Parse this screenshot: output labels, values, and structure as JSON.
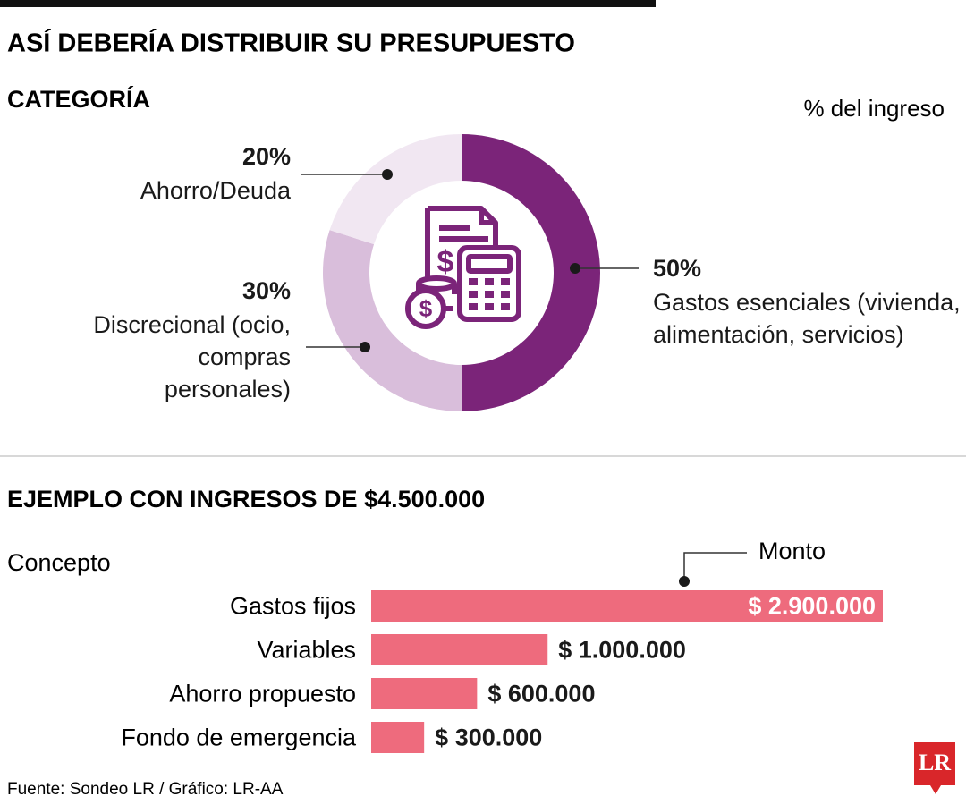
{
  "title": "ASÍ DEBERÍA DISTRIBUIR SU PRESUPUESTO",
  "source": "Fuente: Sondeo LR / Gráfico: LR-AA",
  "logo": "LR",
  "chart_data": [
    {
      "type": "donut",
      "title": "CATEGORÍA",
      "subtitle": "% del ingreso",
      "categories": [
        "Gastos esenciales (vivienda, alimentación, servicios)",
        "Discrecional (ocio, compras personales)",
        "Ahorro/Deuda"
      ],
      "values": [
        50,
        30,
        20
      ],
      "value_labels": [
        "50%",
        "30%",
        "20%"
      ],
      "colors": [
        "#7b2479",
        "#d9bedb",
        "#f1e7f2"
      ]
    },
    {
      "type": "hbar",
      "title": "EJEMPLO CON INGRESOS DE $4.500.000",
      "ylabel": "Concepto",
      "xlabel": "Monto",
      "categories": [
        "Gastos fijos",
        "Variables",
        "Ahorro propuesto",
        "Fondo de emergencia"
      ],
      "values": [
        2900000,
        1000000,
        600000,
        300000
      ],
      "value_labels": [
        "$ 2.900.000",
        "$ 1.000.000",
        "$ 600.000",
        "$ 300.000"
      ],
      "color": "#ee6b7d"
    }
  ]
}
